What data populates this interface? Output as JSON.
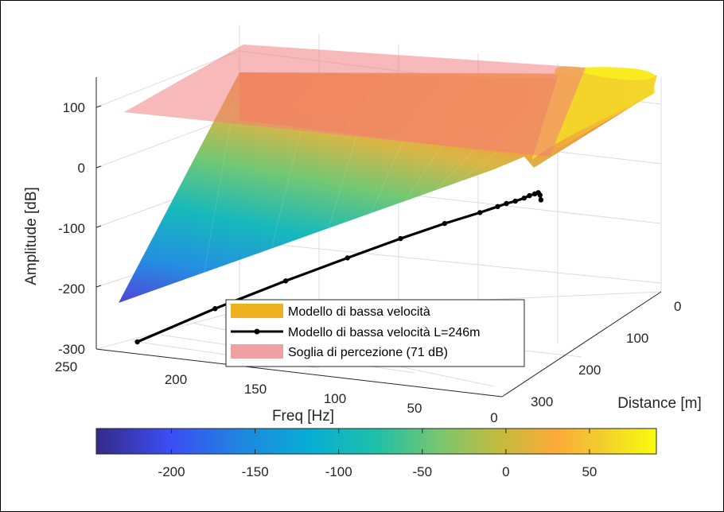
{
  "chart_data": {
    "type": "surface3d",
    "zlabel": "Amplitude [dB]",
    "xlabel": "Freq [Hz]",
    "ylabel": "Distance [m]",
    "freq_ticks": [
      250,
      200,
      150,
      100,
      50,
      0
    ],
    "distance_ticks": [
      0,
      100,
      200,
      300
    ],
    "amplitude_ticks": [
      100,
      0,
      -100,
      -200,
      -300
    ],
    "freq_range": [
      0,
      250
    ],
    "distance_range": [
      0,
      300
    ],
    "amplitude_range": [
      -300,
      100
    ],
    "grid": true,
    "series": [
      {
        "name": "Modello di bassa velocità",
        "kind": "surface",
        "color": "#EDB120"
      },
      {
        "name": "Modello di bassa velocità L=246m",
        "kind": "line-with-markers",
        "color": "#000000",
        "distance": 246,
        "points": [
          {
            "freq": 229,
            "amplitude": -229
          },
          {
            "freq": 185,
            "amplitude": -174
          },
          {
            "freq": 145,
            "amplitude": -128
          },
          {
            "freq": 110,
            "amplitude": -90
          },
          {
            "freq": 80,
            "amplitude": -58
          },
          {
            "freq": 55,
            "amplitude": -33
          },
          {
            "freq": 35,
            "amplitude": -15
          },
          {
            "freq": 25,
            "amplitude": -5
          },
          {
            "freq": 20,
            "amplitude": 0
          },
          {
            "freq": 15,
            "amplitude": 4
          },
          {
            "freq": 10,
            "amplitude": 9
          },
          {
            "freq": 7,
            "amplitude": 13
          },
          {
            "freq": 4,
            "amplitude": 16
          },
          {
            "freq": 2,
            "amplitude": 18
          },
          {
            "freq": 1,
            "amplitude": 14
          },
          {
            "freq": 0.5,
            "amplitude": 6
          }
        ]
      },
      {
        "name": "Soglia di percezione (71 dB)",
        "kind": "plane",
        "color": "#F0A0A0",
        "amplitude": 71
      }
    ],
    "legend": "bottom-center",
    "colorbar": {
      "ticks": [
        -200,
        -150,
        -100,
        -50,
        0,
        50
      ],
      "range": [
        -245,
        90
      ],
      "colormap": "parula"
    }
  }
}
